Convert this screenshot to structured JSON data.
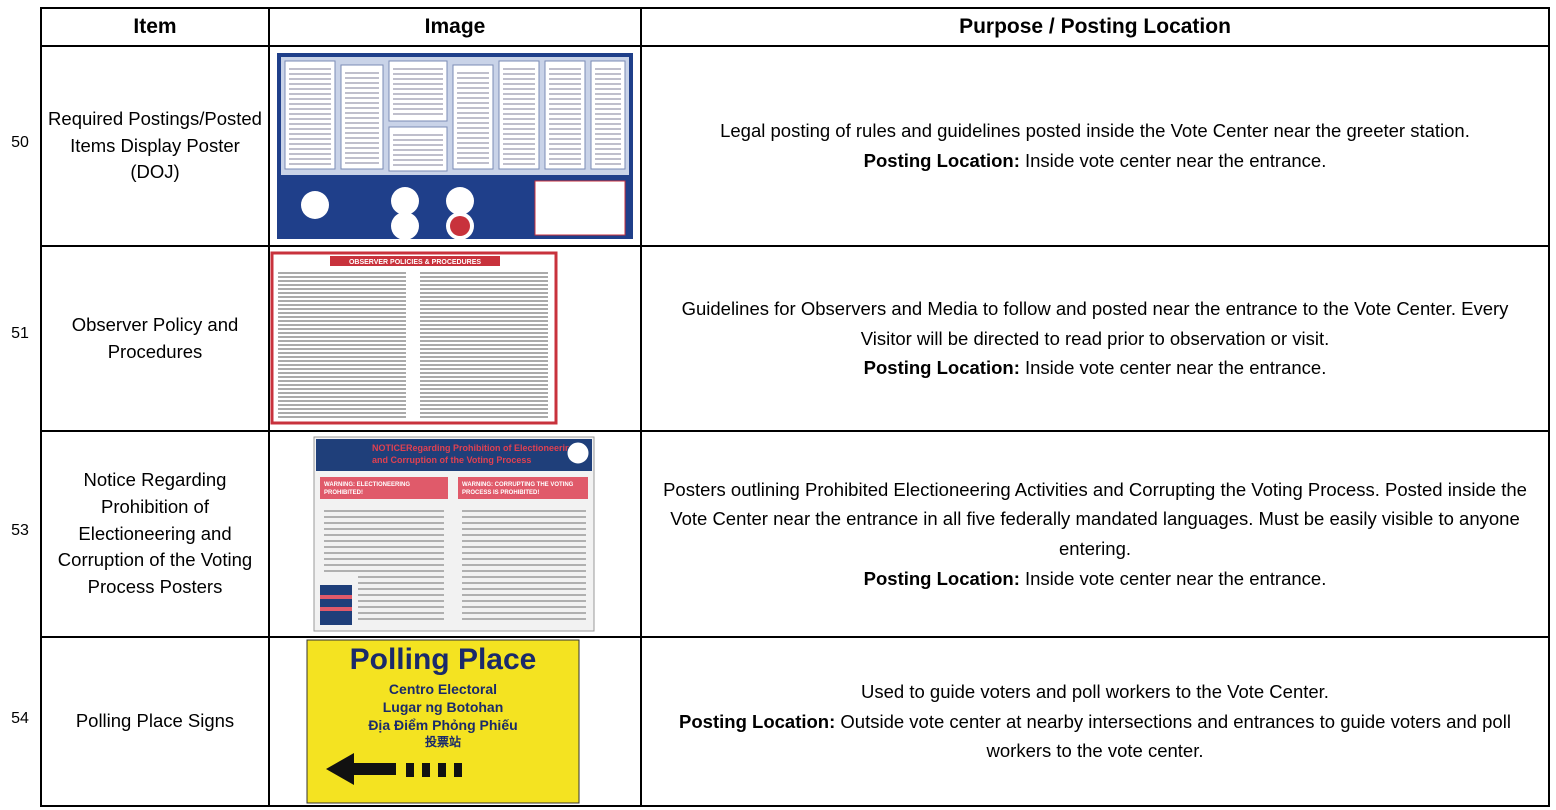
{
  "header": {
    "columns": [
      "Item",
      "Image",
      "Purpose / Posting Location"
    ]
  },
  "rows": [
    {
      "number": 50,
      "item": "Required Postings/Posted Items Display Poster (DOJ)",
      "purpose": "Legal posting of rules and guidelines posted inside the Vote Center near the greeter station.",
      "posting_label": "Posting Location:",
      "posting_text": "Inside vote center near the entrance."
    },
    {
      "number": 51,
      "item": "Observer Policy and Procedures",
      "image_text": [
        "OBSERVER POLICIES & PROCEDURES"
      ],
      "purpose": "Guidelines for Observers and Media to follow and posted near the entrance to the Vote Center. Every Visitor will be directed to read prior to observation or visit.",
      "posting_label": "Posting Location:",
      "posting_text": "Inside vote center near the entrance."
    },
    {
      "number": 53,
      "item": "Notice Regarding Prohibition of Electioneering and Corruption of the Voting Process Posters",
      "image_text": [
        "NOTICE",
        "Regarding Prohibition of Electioneering",
        "and Corruption of the Voting Process",
        "WARNING: ELECTIONEERING",
        "PROHIBITED!",
        "WARNING: CORRUPTING THE VOTING",
        "PROCESS IS PROHIBITED!"
      ],
      "purpose": "Posters outlining Prohibited Electioneering Activities and Corrupting the Voting Process. Posted inside the Vote Center near the entrance in all five federally mandated languages. Must be easily visible to anyone entering.",
      "posting_label": "Posting Location:",
      "posting_text": "Inside vote center near the entrance."
    },
    {
      "number": 54,
      "item": "Polling Place Signs",
      "image_text": [
        "Polling Place",
        "Centro Electoral",
        "Lugar ng Botohan",
        "Địa Điểm Phỏng Phiếu",
        "投票站"
      ],
      "purpose": "Used to guide voters and poll workers to the Vote Center.",
      "posting_label": "Posting Location:",
      "posting_text": "Outside vote center at nearby intersections and entrances to guide voters and poll workers to the vote center."
    }
  ]
}
